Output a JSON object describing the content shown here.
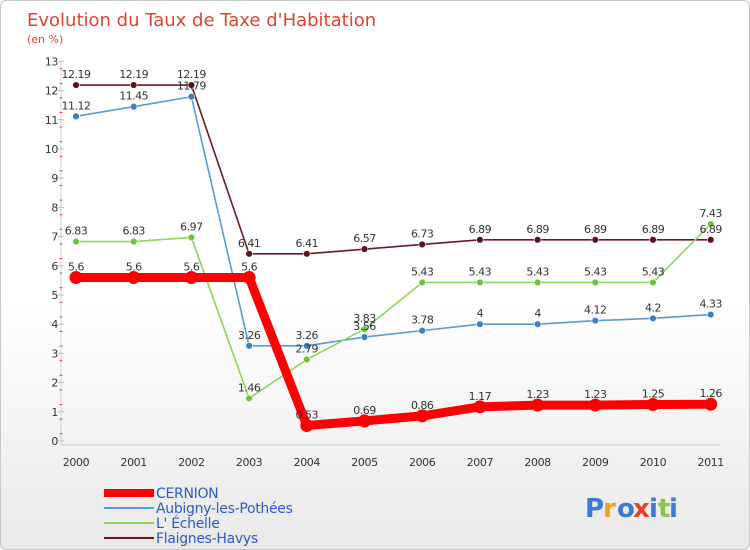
{
  "chart_data": {
    "type": "line",
    "title": "Evolution du Taux de Taxe d'Habitation",
    "subtitle": "(en %)",
    "xlabel": "",
    "ylabel": "",
    "ylim": [
      0,
      13
    ],
    "yticks": [
      "0",
      "1",
      "2",
      "3",
      "4",
      "5",
      "6",
      "7",
      "8",
      "9",
      "10",
      "11",
      "12",
      "13"
    ],
    "categories": [
      "2000",
      "2001",
      "2002",
      "2003",
      "2004",
      "2005",
      "2006",
      "2007",
      "2008",
      "2009",
      "2010",
      "2011"
    ],
    "grid": false,
    "legend": "bottom-left",
    "series": [
      {
        "name": "Flaignes-Havys",
        "color": "#6b1a24",
        "marker_color": "#5a1219",
        "values": [
          12.19,
          12.19,
          12.19,
          6.41,
          6.41,
          6.57,
          6.73,
          6.89,
          6.89,
          6.89,
          6.89,
          6.89
        ],
        "labels": [
          "12.19",
          "12.19",
          "12.19",
          "6.41",
          "6.41",
          "6.57",
          "6.73",
          "6.89",
          "6.89",
          "6.89",
          "6.89",
          "6.89"
        ]
      },
      {
        "name": "Aubigny-les-Pothées",
        "color": "#5a9bd5",
        "marker_color": "#3d7fc0",
        "values": [
          11.12,
          11.45,
          11.79,
          3.26,
          3.26,
          3.56,
          3.78,
          4,
          4,
          4.12,
          4.2,
          4.33
        ],
        "labels": [
          "11.12",
          "11.45",
          "11.79",
          "3.26",
          "3.26",
          "3.56",
          "3.78",
          "4",
          "4",
          "4.12",
          "4.2",
          "4.33"
        ]
      },
      {
        "name": "L' Échelle",
        "color": "#8ed65a",
        "marker_color": "#6cc63a",
        "values": [
          6.83,
          6.83,
          6.97,
          1.46,
          2.79,
          3.83,
          5.43,
          5.43,
          5.43,
          5.43,
          5.43,
          7.43
        ],
        "labels": [
          "6.83",
          "6.83",
          "6.97",
          "1.46",
          "2.79",
          "3.83",
          "5.43",
          "5.43",
          "5.43",
          "5.43",
          "5.43",
          "7.43"
        ]
      },
      {
        "name": "CERNION",
        "color": "#ff0000",
        "marker_color": "#ff0000",
        "values": [
          5.6,
          5.6,
          5.6,
          5.6,
          0.53,
          0.69,
          0.86,
          1.17,
          1.23,
          1.23,
          1.25,
          1.26
        ],
        "labels": [
          "5.6",
          "5.6",
          "5.6",
          "5.6",
          "0.53",
          "0.69",
          "0.86",
          "1.17",
          "1.23",
          "1.23",
          "1.25",
          "1.26"
        ]
      }
    ],
    "legend_items": [
      {
        "name": "CERNION",
        "color": "#ff0000"
      },
      {
        "name": "Aubigny-les-Pothées",
        "color": "#5a9bd5"
      },
      {
        "name": "L' Échelle",
        "color": "#8ed65a"
      },
      {
        "name": "Flaignes-Havys",
        "color": "#6b1a24"
      }
    ]
  },
  "logo": {
    "text": "Proxiti",
    "letter_colors": [
      "#3a7bd5",
      "#f0a020",
      "#3a7bd5",
      "#e8402a",
      "#3a7bd5",
      "#8bc34a",
      "#3a7bd5"
    ]
  }
}
